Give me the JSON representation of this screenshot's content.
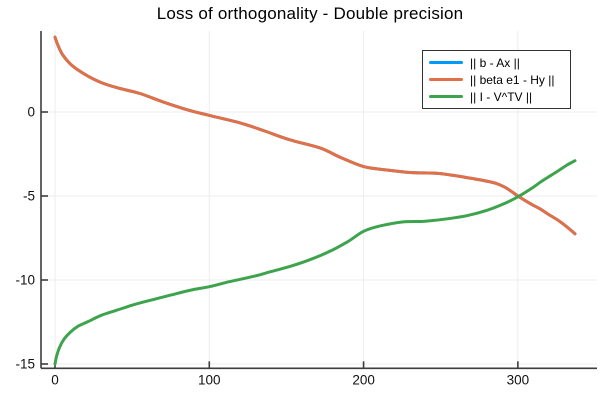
{
  "chart_data": {
    "type": "line",
    "title": "Loss of orthogonality - Double precision",
    "xlabel": "",
    "ylabel": "",
    "xlim": [
      -9,
      351
    ],
    "ylim": [
      -15.3,
      4.8
    ],
    "x_ticks": [
      0,
      100,
      200,
      300
    ],
    "y_ticks": [
      0,
      -5,
      -10,
      -15
    ],
    "grid": true,
    "legend_position": "top-right",
    "axis_color": "#3d3d3d",
    "grid_color": "#ececec",
    "tick_label_color": "#111111",
    "series": [
      {
        "name": "|| b - Ax ||",
        "color": "#009AF9",
        "hidden_behind": "|| beta e1 - Hy ||",
        "points": [
          [
            0,
            4.45
          ],
          [
            2,
            3.95
          ],
          [
            5,
            3.4
          ],
          [
            10,
            2.85
          ],
          [
            15,
            2.5
          ],
          [
            22,
            2.1
          ],
          [
            30,
            1.75
          ],
          [
            40,
            1.45
          ],
          [
            55,
            1.1
          ],
          [
            70,
            0.6
          ],
          [
            87,
            0.1
          ],
          [
            100,
            -0.2
          ],
          [
            120,
            -0.65
          ],
          [
            135,
            -1.1
          ],
          [
            152,
            -1.65
          ],
          [
            172,
            -2.15
          ],
          [
            185,
            -2.7
          ],
          [
            200,
            -3.25
          ],
          [
            215,
            -3.45
          ],
          [
            230,
            -3.6
          ],
          [
            247,
            -3.65
          ],
          [
            260,
            -3.8
          ],
          [
            270,
            -3.95
          ],
          [
            284,
            -4.2
          ],
          [
            292,
            -4.5
          ],
          [
            300,
            -5.0
          ],
          [
            308,
            -5.45
          ],
          [
            314,
            -5.75
          ],
          [
            320,
            -6.1
          ],
          [
            327,
            -6.5
          ],
          [
            332,
            -6.85
          ],
          [
            337,
            -7.25
          ]
        ]
      },
      {
        "name": "|| beta e1 - Hy ||",
        "color": "#E26F46",
        "points": [
          [
            0,
            4.45
          ],
          [
            2,
            3.95
          ],
          [
            5,
            3.4
          ],
          [
            10,
            2.85
          ],
          [
            15,
            2.5
          ],
          [
            22,
            2.1
          ],
          [
            30,
            1.75
          ],
          [
            40,
            1.45
          ],
          [
            55,
            1.1
          ],
          [
            70,
            0.6
          ],
          [
            87,
            0.1
          ],
          [
            100,
            -0.2
          ],
          [
            120,
            -0.65
          ],
          [
            135,
            -1.1
          ],
          [
            152,
            -1.65
          ],
          [
            172,
            -2.15
          ],
          [
            185,
            -2.7
          ],
          [
            200,
            -3.25
          ],
          [
            215,
            -3.45
          ],
          [
            230,
            -3.6
          ],
          [
            247,
            -3.65
          ],
          [
            260,
            -3.8
          ],
          [
            270,
            -3.95
          ],
          [
            284,
            -4.2
          ],
          [
            292,
            -4.5
          ],
          [
            300,
            -5.0
          ],
          [
            308,
            -5.45
          ],
          [
            314,
            -5.75
          ],
          [
            320,
            -6.1
          ],
          [
            327,
            -6.5
          ],
          [
            332,
            -6.85
          ],
          [
            337,
            -7.25
          ]
        ]
      },
      {
        "name": "|| I - V^TV ||",
        "color": "#3DA44D",
        "points": [
          [
            0,
            -15.0
          ],
          [
            1,
            -14.55
          ],
          [
            3,
            -14.0
          ],
          [
            6,
            -13.5
          ],
          [
            10,
            -13.1
          ],
          [
            15,
            -12.75
          ],
          [
            22,
            -12.45
          ],
          [
            30,
            -12.1
          ],
          [
            40,
            -11.8
          ],
          [
            50,
            -11.5
          ],
          [
            62,
            -11.2
          ],
          [
            75,
            -10.9
          ],
          [
            88,
            -10.6
          ],
          [
            100,
            -10.4
          ],
          [
            113,
            -10.1
          ],
          [
            128,
            -9.8
          ],
          [
            140,
            -9.5
          ],
          [
            152,
            -9.2
          ],
          [
            165,
            -8.8
          ],
          [
            178,
            -8.3
          ],
          [
            190,
            -7.7
          ],
          [
            200,
            -7.1
          ],
          [
            210,
            -6.8
          ],
          [
            225,
            -6.55
          ],
          [
            240,
            -6.5
          ],
          [
            255,
            -6.35
          ],
          [
            268,
            -6.15
          ],
          [
            280,
            -5.85
          ],
          [
            290,
            -5.5
          ],
          [
            300,
            -5.05
          ],
          [
            308,
            -4.6
          ],
          [
            315,
            -4.15
          ],
          [
            321,
            -3.8
          ],
          [
            327,
            -3.45
          ],
          [
            332,
            -3.15
          ],
          [
            337,
            -2.9
          ]
        ]
      }
    ]
  }
}
